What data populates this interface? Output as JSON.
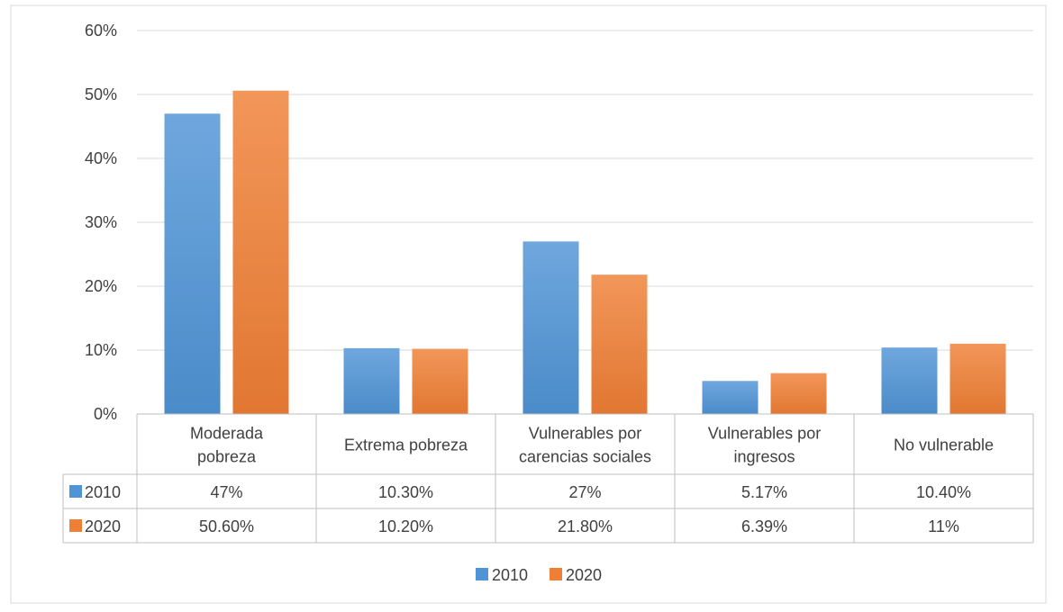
{
  "chart_data": {
    "type": "bar",
    "categories": [
      [
        "Moderada",
        "pobreza"
      ],
      [
        "Extrema pobreza"
      ],
      [
        "Vulnerables por",
        "carencias sociales"
      ],
      [
        "Vulnerables por",
        "ingresos"
      ],
      [
        "No vulnerable"
      ]
    ],
    "series": [
      {
        "name": "2010",
        "values": [
          0.47,
          0.103,
          0.27,
          0.0517,
          0.104
        ],
        "labels": [
          "47%",
          "10.30%",
          "27%",
          "5.17%",
          "10.40%"
        ],
        "color": "#4f94d6"
      },
      {
        "name": "2020",
        "values": [
          0.506,
          0.102,
          0.218,
          0.0639,
          0.11
        ],
        "labels": [
          "50.60%",
          "10.20%",
          "21.80%",
          "6.39%",
          "11%"
        ],
        "color": "#ef7f35"
      }
    ],
    "y_ticks": [
      "0%",
      "10%",
      "20%",
      "30%",
      "40%",
      "50%",
      "60%"
    ],
    "ylim": [
      0,
      0.6
    ],
    "grid": true,
    "legend": "bottom",
    "data_table": true
  }
}
